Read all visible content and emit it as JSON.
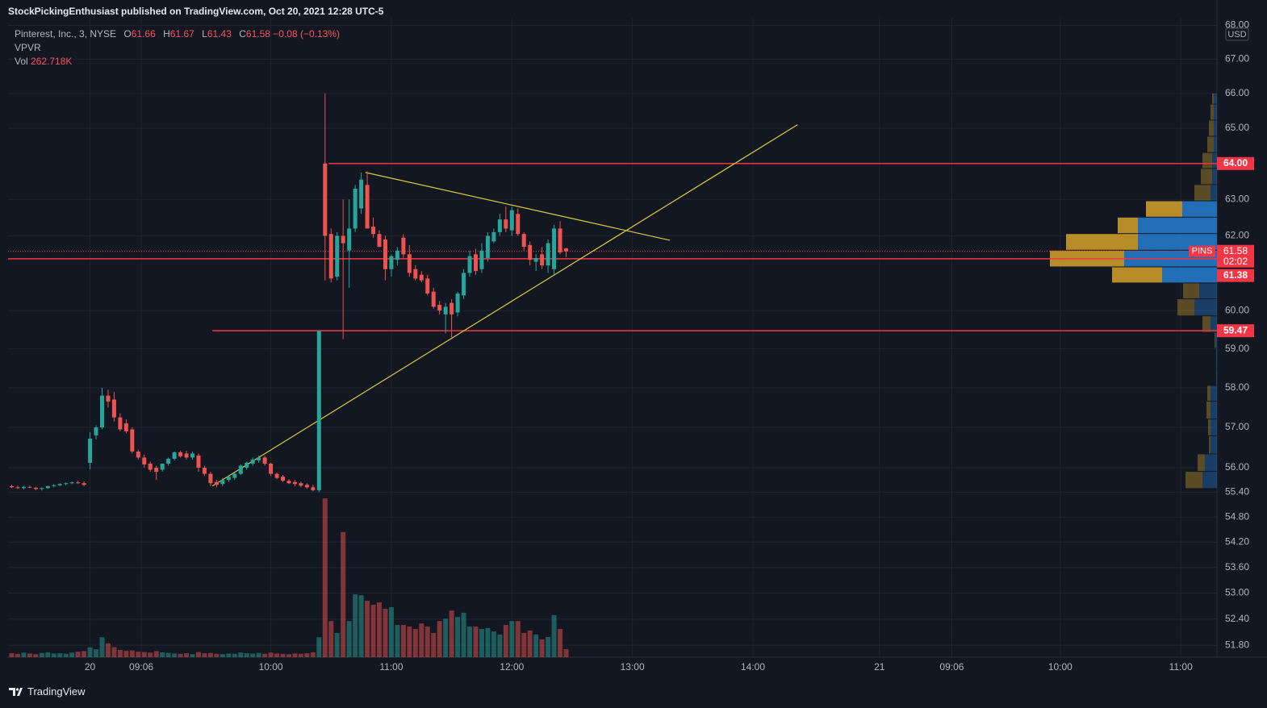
{
  "header": {
    "title": "StockPickingEnthusiast published on TradingView.com, Oct 20, 2021 12:28 UTC-5"
  },
  "chart_data": {
    "type": "candlestick",
    "symbol": "Pinterest, Inc., 3, NYSE",
    "ohlc_legend": [
      {
        "label": "O",
        "value": 61.66
      },
      {
        "label": "H",
        "value": 61.67
      },
      {
        "label": "L",
        "value": 61.43
      },
      {
        "label": "C",
        "value": 61.58
      }
    ],
    "change": "−0.08 (−0.13%)",
    "indicators": [
      "VPVR"
    ],
    "volume_name": "Vol",
    "volume_label": "262.718K",
    "x": [
      1,
      2,
      3,
      4,
      5,
      6,
      7,
      8,
      9,
      10,
      11,
      12,
      13,
      14,
      15,
      16,
      17,
      18,
      19,
      20,
      21,
      22,
      23,
      24,
      25,
      26,
      27,
      28,
      29,
      30,
      31,
      32,
      33,
      34,
      35,
      36,
      37,
      38,
      39,
      40,
      41,
      42,
      43,
      44,
      45,
      46,
      47,
      48,
      49,
      50,
      51,
      52,
      53,
      54,
      55,
      56,
      57,
      58,
      59,
      60,
      61,
      62,
      63,
      64,
      65,
      66,
      67,
      68,
      69,
      70,
      71,
      72,
      73,
      74,
      75,
      76,
      77,
      78,
      79,
      80,
      81,
      82,
      83,
      84,
      85,
      86,
      87,
      88,
      89,
      90,
      91,
      92,
      93
    ],
    "open": [
      55.55,
      55.52,
      55.5,
      55.53,
      55.51,
      55.48,
      55.5,
      55.55,
      55.57,
      55.6,
      55.62,
      55.64,
      55.62,
      56.12,
      56.8,
      57.0,
      57.8,
      57.7,
      57.25,
      57.1,
      56.95,
      56.4,
      56.25,
      56.1,
      56.0,
      55.95,
      56.1,
      56.22,
      56.38,
      56.35,
      56.25,
      56.3,
      56.0,
      55.85,
      55.65,
      55.6,
      55.7,
      55.75,
      55.85,
      56.0,
      56.1,
      56.18,
      56.25,
      56.1,
      55.85,
      55.78,
      55.68,
      55.65,
      55.62,
      55.58,
      55.52,
      55.45,
      64.0,
      62.05,
      60.9,
      62.0,
      61.6,
      62.2,
      62.75,
      63.4,
      62.25,
      62.05,
      61.9,
      61.1,
      61.35,
      61.95,
      61.5,
      61.1,
      60.95,
      60.85,
      60.5,
      60.15,
      59.9,
      60.2,
      59.95,
      60.4,
      61.0,
      61.5,
      61.1,
      61.4,
      61.85,
      62.1,
      62.45,
      62.15,
      62.6,
      62.05,
      61.75,
      61.3,
      61.5,
      61.2,
      61.1,
      62.2,
      61.66
    ],
    "high": [
      55.58,
      55.56,
      55.55,
      55.56,
      55.53,
      55.52,
      55.56,
      55.6,
      55.62,
      55.64,
      55.66,
      55.68,
      55.66,
      56.88,
      57.05,
      58.0,
      57.95,
      57.9,
      57.35,
      57.2,
      57.0,
      56.45,
      56.32,
      56.15,
      56.05,
      56.1,
      56.25,
      56.4,
      56.42,
      56.42,
      56.4,
      56.35,
      56.05,
      55.9,
      55.7,
      55.75,
      55.8,
      55.88,
      56.08,
      56.15,
      56.25,
      56.3,
      56.3,
      56.12,
      55.88,
      55.82,
      55.72,
      55.7,
      55.66,
      55.62,
      55.58,
      59.47,
      66.0,
      62.2,
      62.1,
      63.0,
      63.0,
      63.4,
      63.75,
      63.78,
      62.5,
      62.15,
      62.0,
      61.5,
      61.7,
      62.05,
      61.75,
      61.2,
      61.05,
      60.95,
      60.6,
      60.25,
      60.2,
      60.3,
      60.5,
      61.1,
      61.6,
      61.65,
      61.8,
      62.1,
      62.2,
      62.6,
      62.8,
      62.8,
      62.75,
      62.1,
      61.85,
      61.5,
      61.7,
      61.9,
      62.3,
      62.4,
      61.67
    ],
    "low": [
      55.5,
      55.48,
      55.47,
      55.5,
      55.45,
      55.44,
      55.48,
      55.52,
      55.55,
      55.57,
      55.6,
      55.6,
      55.55,
      55.96,
      56.7,
      56.95,
      57.5,
      57.15,
      56.9,
      56.85,
      56.35,
      56.2,
      56.0,
      55.9,
      55.7,
      55.9,
      56.05,
      56.18,
      56.25,
      56.2,
      56.2,
      55.9,
      55.8,
      55.55,
      55.52,
      55.55,
      55.65,
      55.7,
      55.82,
      55.95,
      56.05,
      56.12,
      56.05,
      55.8,
      55.72,
      55.65,
      55.6,
      55.55,
      55.52,
      55.48,
      55.42,
      55.4,
      60.8,
      60.75,
      60.8,
      59.25,
      60.6,
      62.1,
      62.6,
      62.2,
      61.95,
      61.7,
      60.8,
      60.9,
      61.2,
      61.4,
      60.9,
      60.8,
      60.75,
      60.4,
      60.05,
      59.9,
      59.4,
      59.3,
      59.85,
      60.3,
      60.9,
      60.95,
      61.0,
      61.3,
      61.8,
      62.0,
      62.1,
      62.0,
      62.0,
      61.6,
      61.2,
      61.05,
      61.1,
      61.0,
      60.95,
      61.5,
      61.43
    ],
    "close": [
      55.52,
      55.5,
      55.53,
      55.51,
      55.48,
      55.5,
      55.55,
      55.57,
      55.6,
      55.62,
      55.64,
      55.62,
      55.58,
      56.72,
      57.0,
      57.8,
      57.65,
      57.25,
      56.95,
      56.9,
      56.4,
      56.25,
      56.08,
      55.95,
      55.9,
      56.1,
      56.22,
      56.38,
      56.28,
      56.25,
      56.35,
      56.0,
      55.85,
      55.62,
      55.58,
      55.7,
      55.78,
      55.85,
      56.05,
      56.12,
      56.2,
      56.25,
      56.1,
      55.85,
      55.75,
      55.68,
      55.62,
      55.6,
      55.56,
      55.52,
      55.45,
      59.47,
      62.0,
      60.85,
      62.0,
      61.8,
      62.2,
      63.3,
      63.55,
      62.2,
      62.05,
      61.7,
      61.1,
      61.45,
      61.6,
      61.5,
      61.0,
      60.85,
      60.8,
      60.45,
      60.1,
      60.0,
      60.1,
      59.9,
      60.45,
      61.0,
      61.45,
      61.05,
      61.6,
      62.0,
      62.1,
      62.45,
      62.2,
      62.7,
      62.05,
      61.7,
      61.35,
      61.4,
      61.2,
      61.8,
      62.2,
      61.55,
      61.58
    ],
    "volume": [
      130,
      110,
      150,
      120,
      100,
      140,
      160,
      120,
      130,
      110,
      150,
      180,
      200,
      320,
      260,
      650,
      450,
      330,
      240,
      210,
      220,
      180,
      170,
      150,
      200,
      160,
      140,
      120,
      110,
      130,
      100,
      170,
      130,
      140,
      110,
      100,
      120,
      110,
      150,
      130,
      120,
      140,
      110,
      150,
      120,
      110,
      100,
      120,
      110,
      130,
      160,
      650,
      5180,
      1180,
      790,
      4080,
      1180,
      2050,
      2020,
      1840,
      1710,
      1790,
      1580,
      1630,
      1050,
      1050,
      1000,
      920,
      1100,
      1000,
      790,
      1180,
      1260,
      1520,
      1310,
      1450,
      1000,
      1000,
      920,
      950,
      840,
      740,
      1050,
      1180,
      1180,
      790,
      870,
      740,
      580,
      660,
      1370,
      920,
      262.718
    ],
    "up_color": "#26a69a",
    "down_color": "#ef5350",
    "xlim": [
      0.4,
      201
    ],
    "xticks": [
      {
        "value": 14,
        "label": "20"
      },
      {
        "value": 22.5,
        "label": "09:06"
      },
      {
        "value": 44,
        "label": "10:00"
      },
      {
        "value": 64,
        "label": "11:00"
      },
      {
        "value": 84,
        "label": "12:00"
      },
      {
        "value": 104,
        "label": "13:00"
      },
      {
        "value": 124,
        "label": "14:00"
      },
      {
        "value": 145,
        "label": "21"
      },
      {
        "value": 157,
        "label": "09:06"
      },
      {
        "value": 175,
        "label": "10:00"
      },
      {
        "value": 195,
        "label": "11:00"
      }
    ],
    "ylim": [
      51.53,
      68.23
    ],
    "log_scale": true,
    "yticks": [
      {
        "value": 68,
        "label": "68.00"
      },
      {
        "value": 67,
        "label": "67.00"
      },
      {
        "value": 66,
        "label": "66.00"
      },
      {
        "value": 65,
        "label": "65.00"
      },
      {
        "value": 63,
        "label": "63.00"
      },
      {
        "value": 62,
        "label": "62.00"
      },
      {
        "value": 60,
        "label": "60.00"
      },
      {
        "value": 59,
        "label": "59.00"
      },
      {
        "value": 58,
        "label": "58.00"
      },
      {
        "value": 57,
        "label": "57.00"
      },
      {
        "value": 56,
        "label": "56.00"
      },
      {
        "value": 55.4,
        "label": "55.40"
      },
      {
        "value": 54.8,
        "label": "54.80"
      },
      {
        "value": 54.2,
        "label": "54.20"
      },
      {
        "value": 53.6,
        "label": "53.60"
      },
      {
        "value": 53,
        "label": "53.00"
      },
      {
        "value": 52.4,
        "label": "52.40"
      },
      {
        "value": 51.8,
        "label": "51.80"
      }
    ],
    "currency": "USD",
    "grid": true,
    "level_color": "#f23645",
    "levels": [
      {
        "value": 64,
        "label": "64.00",
        "from": 53.6
      },
      {
        "value": 61.38,
        "label": "61.38"
      },
      {
        "value": 59.47,
        "label": "59.47",
        "from": 34.3
      }
    ],
    "last_price": {
      "value": 61.58,
      "label": "61.58",
      "ticker": "PINS",
      "countdown": "02:02"
    },
    "trendline_color": "#d9cc3a",
    "trendlines": [
      {
        "x": [
          34.3,
          131.4
        ],
        "y": [
          55.55,
          65.1
        ]
      },
      {
        "x": [
          59.7,
          110.2
        ],
        "y": [
          63.75,
          61.88
        ]
      }
    ],
    "volume_profile": {
      "up_color": "#c99a2a",
      "down_color": "#2378c8",
      "value_area": [
        60.72,
        62.95
      ],
      "bins": [
        55.48,
        55.9,
        56.33,
        56.78,
        57.2,
        57.65,
        58.05,
        58.5,
        59.0,
        59.42,
        59.85,
        60.3,
        60.72,
        61.15,
        61.6,
        62.05,
        62.5,
        62.95,
        63.4,
        63.85,
        64.3,
        64.76,
        65.22,
        65.68,
        66.0
      ],
      "up": [
        1050,
        450,
        100,
        150,
        250,
        200,
        0,
        0,
        50,
        500,
        1050,
        1000,
        3100,
        4600,
        4450,
        1250,
        2250,
        1000,
        700,
        600,
        400,
        300,
        200,
        100
      ],
      "down": [
        900,
        750,
        400,
        400,
        400,
        400,
        50,
        50,
        100,
        400,
        1400,
        1100,
        3400,
        5750,
        4900,
        4900,
        2150,
        400,
        300,
        300,
        200,
        200,
        200,
        200
      ]
    }
  },
  "footer": {
    "brand": "TradingView"
  }
}
